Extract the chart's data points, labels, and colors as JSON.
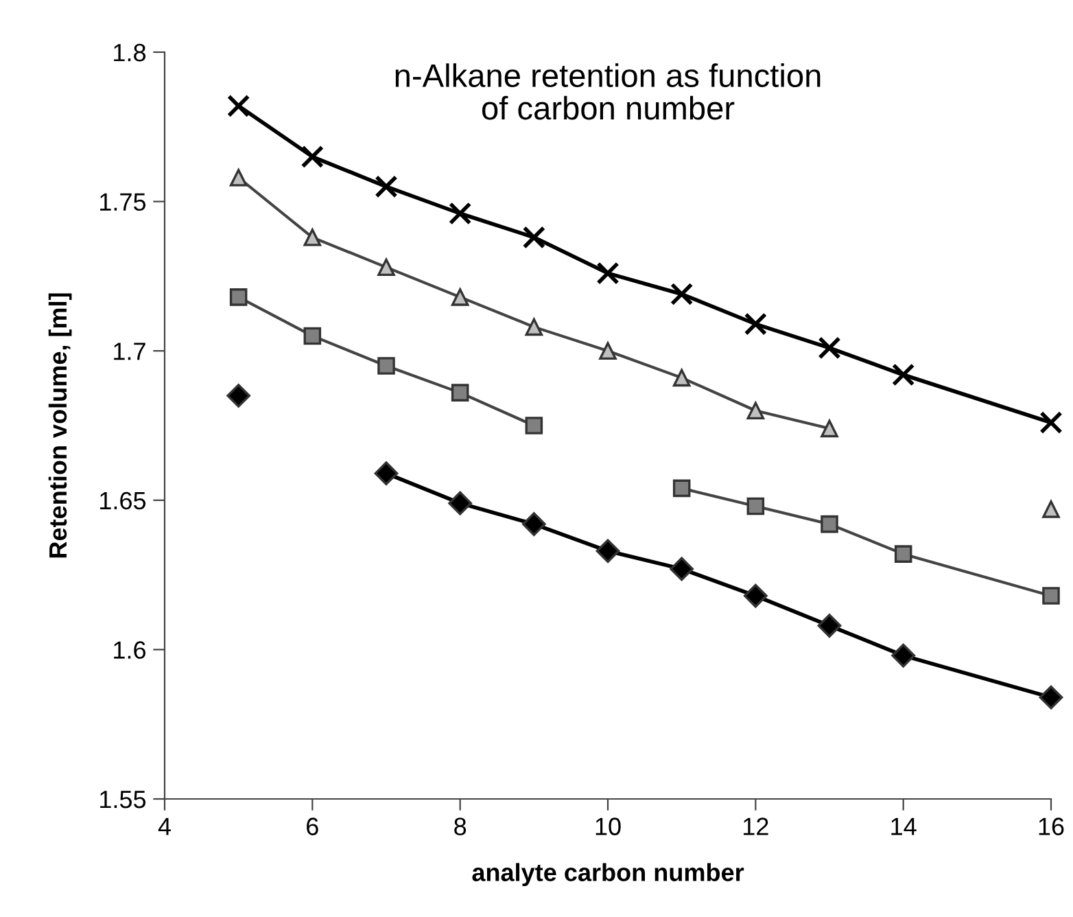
{
  "chart_data": {
    "type": "line",
    "title": "n-Alkane retention as function\nof carbon number",
    "xlabel": "analyte carbon number",
    "ylabel": "Retention volume, [ml]",
    "series": [
      {
        "color": "#000000",
        "marker": "cross",
        "x": [
          5,
          6,
          7,
          8,
          9,
          10,
          11,
          12,
          13,
          14,
          16
        ],
        "values": [
          1.782,
          1.765,
          1.755,
          1.746,
          1.738,
          1.726,
          1.719,
          1.709,
          1.701,
          1.692,
          1.676
        ]
      },
      {
        "color": "#c0c0c0",
        "marker": "triangle",
        "x": [
          5,
          6,
          7,
          8,
          9,
          10,
          11,
          12,
          13,
          14,
          16
        ],
        "values": [
          1.758,
          1.738,
          1.728,
          1.718,
          1.708,
          1.7,
          1.691,
          1.68,
          1.674,
          null,
          1.647
        ]
      },
      {
        "color": "#808080",
        "marker": "square",
        "x": [
          5,
          6,
          7,
          8,
          9,
          10,
          11,
          12,
          13,
          14,
          16
        ],
        "values": [
          1.718,
          1.705,
          1.695,
          1.686,
          1.675,
          null,
          1.654,
          1.648,
          1.642,
          1.632,
          1.618
        ]
      },
      {
        "color": "#000000",
        "marker": "diamond",
        "x": [
          5,
          6,
          7,
          8,
          9,
          10,
          11,
          12,
          13,
          14,
          16
        ],
        "values": [
          1.685,
          null,
          1.659,
          1.649,
          1.642,
          1.633,
          1.627,
          1.618,
          1.608,
          1.598,
          1.584
        ]
      }
    ],
    "xlim": [
      4,
      16
    ],
    "xticks": [
      4,
      6,
      8,
      10,
      12,
      14,
      16
    ],
    "ylim": [
      1.55,
      1.8
    ],
    "yticks": [
      1.55,
      1.6,
      1.65,
      1.7,
      1.75,
      1.8
    ],
    "grid": false,
    "legend": false
  }
}
